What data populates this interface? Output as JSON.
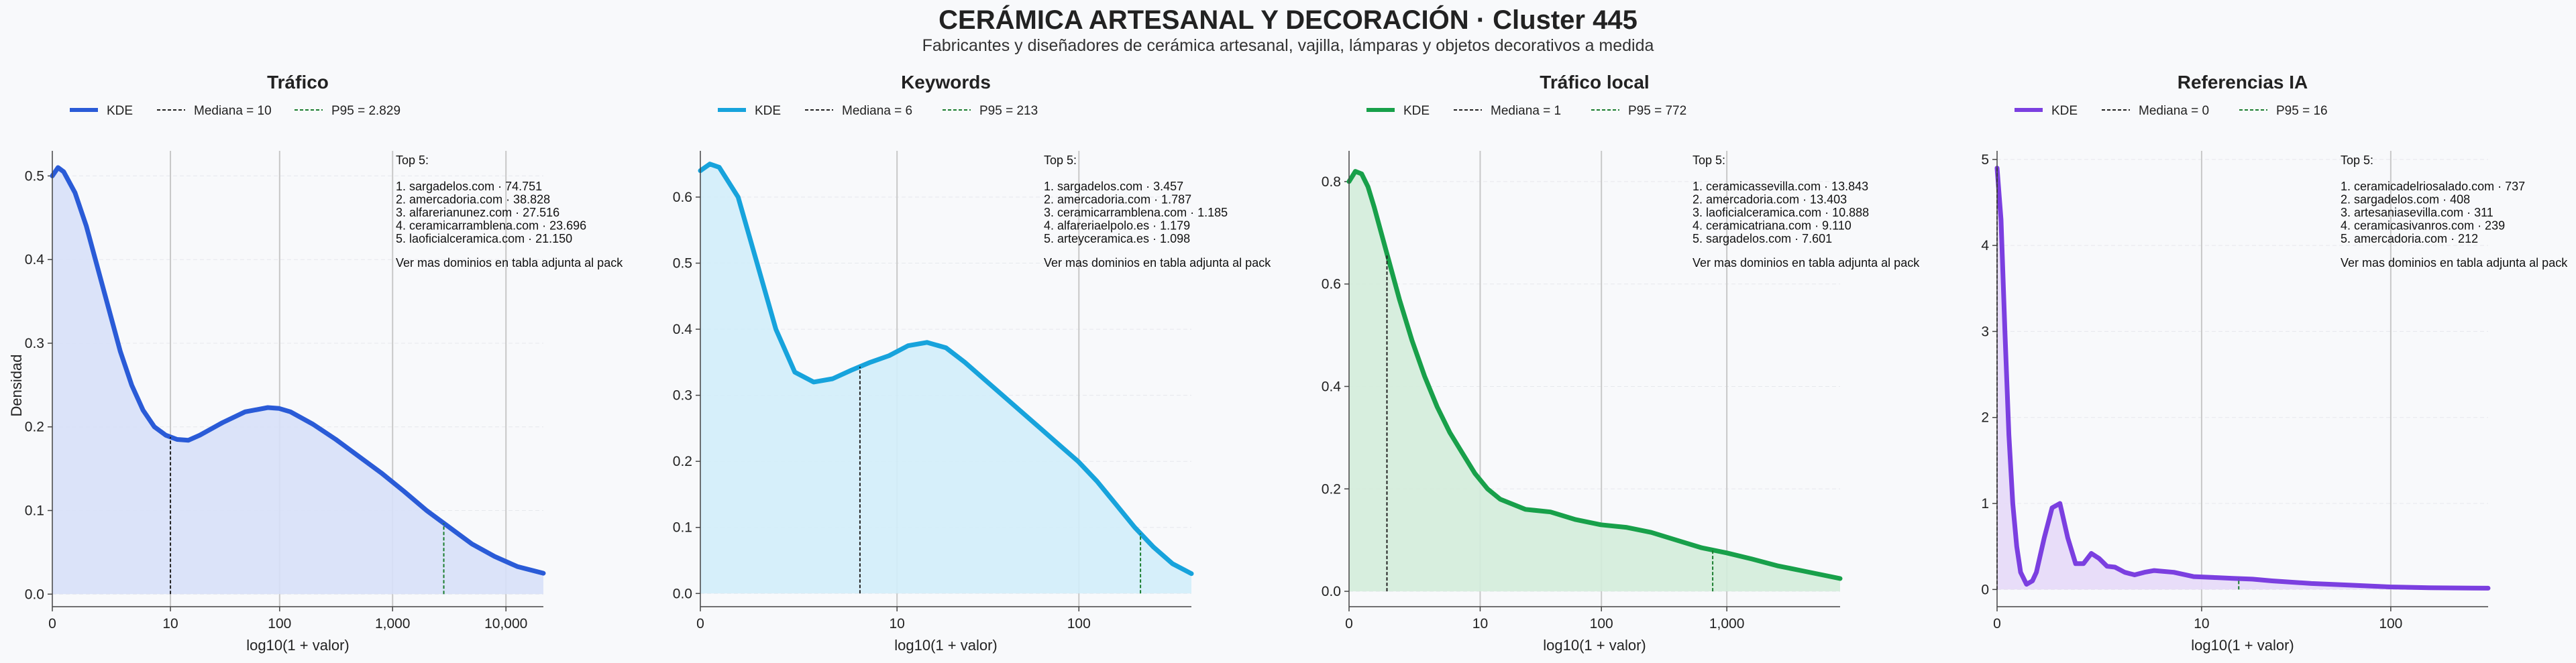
{
  "title": "CERÁMICA ARTESANAL Y DECORACIÓN · Cluster 445",
  "subtitle": "Fabricantes y diseñadores de cerámica artesanal, vajilla, lámparas y objetos decorativos a medida",
  "y_axis_label": "Densidad",
  "chart_data": [
    {
      "type": "area",
      "title": "Tráfico",
      "color": "#2a5bd7",
      "fill": "#d7e0f8",
      "xlabel": "log10(1 + valor)",
      "ylabel": "Densidad",
      "xlim": [
        0,
        4.33
      ],
      "ylim": [
        -0.015,
        0.53
      ],
      "x_ticks": [
        0,
        1.0414,
        2.0043,
        3.0004,
        4.0
      ],
      "x_tick_labels": [
        "0",
        "10",
        "100",
        "1,000",
        "10,000"
      ],
      "y_ticks": [
        0,
        0.1,
        0.2,
        0.3,
        0.4,
        0.5
      ],
      "y_tick_labels": [
        "0.0",
        "0.1",
        "0.2",
        "0.3",
        "0.4",
        "0.5"
      ],
      "x": [
        0,
        0.05,
        0.1,
        0.2,
        0.3,
        0.4,
        0.5,
        0.6,
        0.7,
        0.8,
        0.9,
        1.0,
        1.1,
        1.2,
        1.3,
        1.5,
        1.7,
        1.9,
        2.0,
        2.1,
        2.3,
        2.5,
        2.7,
        2.9,
        3.1,
        3.3,
        3.5,
        3.7,
        3.9,
        4.1,
        4.33
      ],
      "y": [
        0.5,
        0.51,
        0.505,
        0.48,
        0.44,
        0.39,
        0.34,
        0.29,
        0.25,
        0.22,
        0.2,
        0.19,
        0.185,
        0.184,
        0.19,
        0.205,
        0.218,
        0.223,
        0.222,
        0.218,
        0.203,
        0.185,
        0.165,
        0.145,
        0.123,
        0.1,
        0.08,
        0.06,
        0.045,
        0.033,
        0.025
      ],
      "median": {
        "label": "Mediana = 10",
        "x": 1.0414
      },
      "p95": {
        "label": "P95 = 2.829",
        "x": 3.4518
      },
      "legend": {
        "kde": "KDE",
        "position": "top"
      },
      "top5": {
        "header": "Top 5:",
        "items": [
          "1. sargadelos.com · 74.751",
          "2. amercadoria.com · 38.828",
          "3. alfarerianunez.com · 27.516",
          "4. ceramicarramblena.com · 23.696",
          "5. laoficialceramica.com · 21.150"
        ],
        "footer": "Ver mas dominios en tabla adjunta al pack"
      }
    },
    {
      "type": "area",
      "title": "Keywords",
      "color": "#17a3dc",
      "fill": "#d1edfa",
      "xlabel": "log10(1 + valor)",
      "ylabel": "",
      "xlim": [
        0,
        2.6
      ],
      "ylim": [
        -0.02,
        0.67
      ],
      "x_ticks": [
        0,
        1.0414,
        2.0043
      ],
      "x_tick_labels": [
        "0",
        "10",
        "100"
      ],
      "y_ticks": [
        0,
        0.1,
        0.2,
        0.3,
        0.4,
        0.5,
        0.6
      ],
      "y_tick_labels": [
        "0.0",
        "0.1",
        "0.2",
        "0.3",
        "0.4",
        "0.5",
        "0.6"
      ],
      "x": [
        0,
        0.05,
        0.1,
        0.2,
        0.3,
        0.4,
        0.5,
        0.6,
        0.7,
        0.8,
        0.9,
        1.0,
        1.1,
        1.2,
        1.3,
        1.4,
        1.5,
        1.6,
        1.7,
        1.8,
        1.9,
        2.0,
        2.1,
        2.2,
        2.3,
        2.4,
        2.5,
        2.6
      ],
      "y": [
        0.64,
        0.65,
        0.645,
        0.6,
        0.5,
        0.4,
        0.335,
        0.32,
        0.325,
        0.338,
        0.35,
        0.36,
        0.375,
        0.38,
        0.372,
        0.35,
        0.325,
        0.3,
        0.275,
        0.25,
        0.225,
        0.2,
        0.17,
        0.135,
        0.1,
        0.07,
        0.045,
        0.03
      ],
      "median": {
        "label": "Mediana = 6",
        "x": 0.8451
      },
      "p95": {
        "label": "P95 = 213",
        "x": 2.3304
      },
      "legend": {
        "kde": "KDE",
        "position": "top"
      },
      "top5": {
        "header": "Top 5:",
        "items": [
          "1. sargadelos.com · 3.457",
          "2. amercadoria.com · 1.787",
          "3. ceramicarramblena.com · 1.185",
          "4. alfareriaelpolo.es · 1.179",
          "5. arteyceramica.es · 1.098"
        ],
        "footer": "Ver mas dominios en tabla adjunta al pack"
      }
    },
    {
      "type": "area",
      "title": "Tráfico local",
      "color": "#18a04a",
      "fill": "#d3ecda",
      "xlabel": "log10(1 + valor)",
      "ylabel": "",
      "xlim": [
        0,
        3.9
      ],
      "ylim": [
        -0.03,
        0.86
      ],
      "x_ticks": [
        0,
        1.0414,
        2.0043,
        3.0004
      ],
      "x_tick_labels": [
        "0",
        "10",
        "100",
        "1,000"
      ],
      "y_ticks": [
        0,
        0.2,
        0.4,
        0.6,
        0.8
      ],
      "y_tick_labels": [
        "0.0",
        "0.2",
        "0.4",
        "0.6",
        "0.8"
      ],
      "x": [
        0,
        0.05,
        0.1,
        0.15,
        0.2,
        0.3,
        0.4,
        0.5,
        0.6,
        0.7,
        0.8,
        0.9,
        1.0,
        1.1,
        1.2,
        1.4,
        1.6,
        1.8,
        2.0,
        2.2,
        2.4,
        2.6,
        2.8,
        3.0,
        3.2,
        3.4,
        3.6,
        3.9
      ],
      "y": [
        0.8,
        0.82,
        0.815,
        0.79,
        0.75,
        0.66,
        0.57,
        0.49,
        0.42,
        0.36,
        0.31,
        0.27,
        0.23,
        0.2,
        0.18,
        0.16,
        0.155,
        0.14,
        0.13,
        0.125,
        0.115,
        0.1,
        0.085,
        0.075,
        0.063,
        0.05,
        0.04,
        0.025
      ],
      "median": {
        "label": "Mediana = 1",
        "x": 0.301
      },
      "p95": {
        "label": "P95 = 772",
        "x": 2.8882
      },
      "legend": {
        "kde": "KDE",
        "position": "top"
      },
      "top5": {
        "header": "Top 5:",
        "items": [
          "1. ceramicassevilla.com · 13.843",
          "2. amercadoria.com · 13.403",
          "3. laoficialceramica.com · 10.888",
          "4. ceramicatriana.com · 9.110",
          "5. sargadelos.com · 7.601"
        ],
        "footer": "Ver mas dominios en tabla adjunta al pack"
      }
    },
    {
      "type": "area",
      "title": "Referencias IA",
      "color": "#7b3fe0",
      "fill": "#e6d9f8",
      "xlabel": "log10(1 + valor)",
      "ylabel": "",
      "xlim": [
        0,
        2.5
      ],
      "ylim": [
        -0.2,
        5.1
      ],
      "x_ticks": [
        0,
        1.0414,
        2.0043
      ],
      "x_tick_labels": [
        "0",
        "10",
        "100"
      ],
      "y_ticks": [
        0,
        1,
        2,
        3,
        4,
        5
      ],
      "y_tick_labels": [
        "0",
        "1",
        "2",
        "3",
        "4",
        "5"
      ],
      "x": [
        0,
        0.02,
        0.04,
        0.06,
        0.08,
        0.1,
        0.12,
        0.15,
        0.18,
        0.2,
        0.24,
        0.28,
        0.32,
        0.36,
        0.4,
        0.44,
        0.48,
        0.52,
        0.56,
        0.6,
        0.65,
        0.7,
        0.75,
        0.8,
        0.9,
        1.0,
        1.1,
        1.2,
        1.3,
        1.4,
        1.6,
        1.8,
        2.0,
        2.2,
        2.5
      ],
      "y": [
        4.9,
        4.3,
        3.0,
        1.8,
        1.0,
        0.5,
        0.2,
        0.06,
        0.1,
        0.2,
        0.6,
        0.95,
        1.0,
        0.6,
        0.3,
        0.3,
        0.42,
        0.36,
        0.27,
        0.26,
        0.2,
        0.17,
        0.2,
        0.22,
        0.2,
        0.15,
        0.14,
        0.13,
        0.12,
        0.1,
        0.07,
        0.05,
        0.03,
        0.02,
        0.015
      ],
      "median": {
        "label": "Mediana = 0",
        "x": 0
      },
      "p95": {
        "label": "P95 = 16",
        "x": 1.2304
      },
      "legend": {
        "kde": "KDE",
        "position": "top"
      },
      "top5": {
        "header": "Top 5:",
        "items": [
          "1. ceramicadelriosalado.com · 737",
          "2. sargadelos.com · 408",
          "3. artesaniasevilla.com · 311",
          "4. ceramicasivanros.com · 239",
          "5. amercadoria.com · 212"
        ],
        "footer": "Ver mas dominios en tabla adjunta al pack"
      }
    }
  ]
}
